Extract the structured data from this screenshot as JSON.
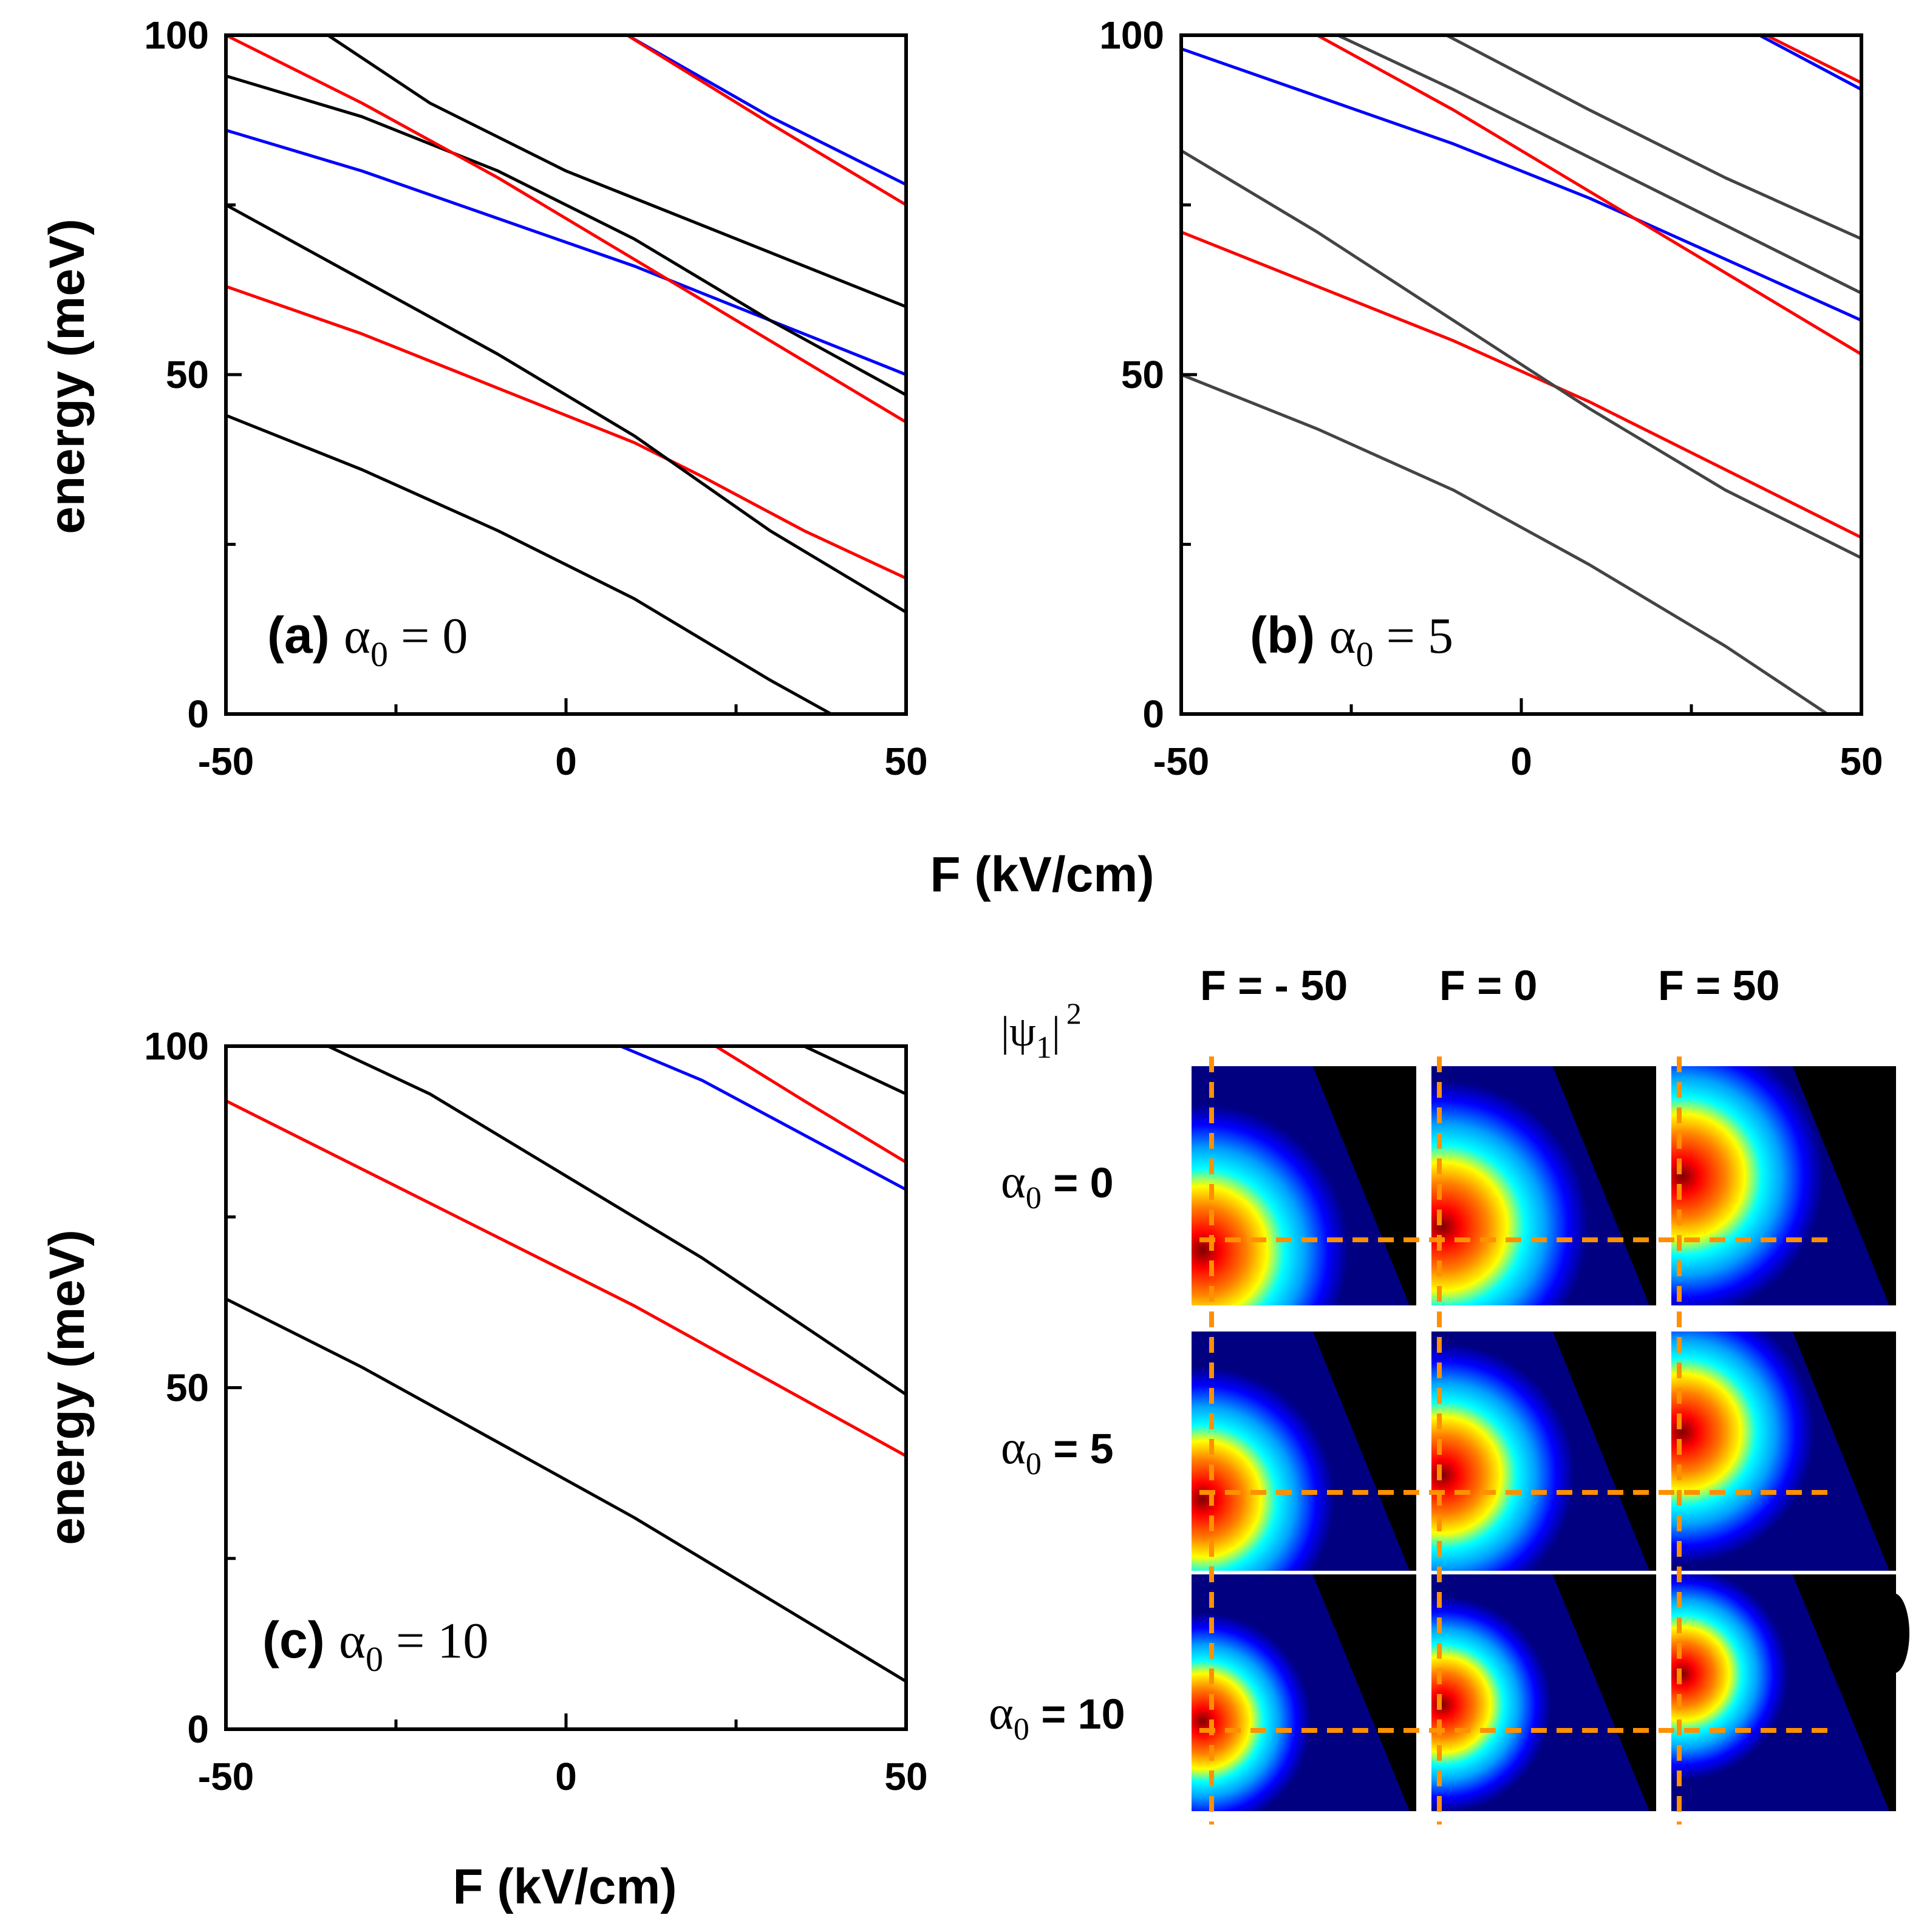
{
  "chart_data": [
    {
      "type": "line",
      "panel": "a",
      "label": "(a)",
      "param_symbol": "α",
      "param_sub": "0",
      "param_eq": " = ",
      "param_value": "0",
      "xlabel": "F (kV/cm)",
      "ylabel": "energy (meV)",
      "xlim": [
        -50,
        50
      ],
      "ylim": [
        0,
        100
      ],
      "xticks": [
        "-50",
        "0",
        "50"
      ],
      "yticks": [
        "0",
        "50",
        "100"
      ],
      "colors": {
        "black": "#000000",
        "red": "#ff0000",
        "blue": "#0000ff"
      },
      "series": [
        {
          "name": "black-1",
          "color": "black",
          "x": [
            -50,
            -30,
            -10,
            10,
            20,
            30,
            39
          ],
          "y": [
            44,
            36,
            27,
            17,
            11,
            5,
            0
          ]
        },
        {
          "name": "red-1",
          "color": "red",
          "x": [
            -50,
            -30,
            -10,
            10,
            20,
            35,
            50
          ],
          "y": [
            63,
            56,
            48,
            40,
            35,
            27,
            20
          ]
        },
        {
          "name": "black-2",
          "color": "black",
          "x": [
            -50,
            -30,
            -10,
            10,
            30,
            50
          ],
          "y": [
            75,
            64,
            53,
            41,
            27,
            15
          ]
        },
        {
          "name": "blue-1",
          "color": "blue",
          "x": [
            -50,
            -30,
            -10,
            10,
            30,
            50
          ],
          "y": [
            86,
            80,
            73,
            66,
            58,
            50
          ]
        },
        {
          "name": "black-3",
          "color": "black",
          "x": [
            -50,
            -30,
            -10,
            10,
            30,
            50
          ],
          "y": [
            94,
            88,
            80,
            70,
            58,
            47
          ]
        },
        {
          "name": "red-2",
          "color": "red",
          "x": [
            -50,
            -30,
            -10,
            10,
            30,
            50
          ],
          "y": [
            100,
            90,
            79,
            67,
            55,
            43
          ]
        },
        {
          "name": "black-4",
          "color": "black",
          "x": [
            -35,
            -20,
            -10,
            0,
            20,
            50
          ],
          "y": [
            100,
            90,
            85,
            80,
            72,
            60
          ]
        },
        {
          "name": "blue-2",
          "color": "blue",
          "x": [
            9,
            30,
            50
          ],
          "y": [
            100,
            88,
            78
          ]
        },
        {
          "name": "red-3",
          "color": "red",
          "x": [
            9,
            30,
            50
          ],
          "y": [
            100,
            87,
            75
          ]
        }
      ]
    },
    {
      "type": "line",
      "panel": "b",
      "label": "(b)",
      "param_symbol": "α",
      "param_sub": "0",
      "param_eq": " = ",
      "param_value": "5",
      "xlabel": "F (kV/cm)",
      "ylabel": "",
      "xlim": [
        -50,
        50
      ],
      "ylim": [
        0,
        100
      ],
      "xticks": [
        "-50",
        "0",
        "50"
      ],
      "yticks": [
        "0",
        "50",
        "100"
      ],
      "colors": {
        "gray": "#444444",
        "red": "#ff0000",
        "blue": "#0000ff"
      },
      "series": [
        {
          "name": "gray-1",
          "color": "gray",
          "x": [
            -50,
            -30,
            -10,
            10,
            30,
            45
          ],
          "y": [
            50,
            42,
            33,
            22,
            10,
            0
          ]
        },
        {
          "name": "red-1",
          "color": "red",
          "x": [
            -50,
            -30,
            -10,
            10,
            30,
            50
          ],
          "y": [
            71,
            63,
            55,
            46,
            36,
            26
          ]
        },
        {
          "name": "gray-2",
          "color": "gray",
          "x": [
            -50,
            -30,
            -10,
            10,
            30,
            50
          ],
          "y": [
            83,
            71,
            58,
            45,
            33,
            23
          ]
        },
        {
          "name": "blue-1",
          "color": "blue",
          "x": [
            -50,
            -30,
            -10,
            10,
            30,
            50
          ],
          "y": [
            98,
            91,
            84,
            76,
            67,
            58
          ]
        },
        {
          "name": "red-2",
          "color": "red",
          "x": [
            -30,
            -10,
            10,
            30,
            50
          ],
          "y": [
            100,
            89,
            77,
            65,
            53
          ]
        },
        {
          "name": "gray-3",
          "color": "gray",
          "x": [
            -27,
            -10,
            10,
            30,
            50
          ],
          "y": [
            100,
            92,
            82,
            72,
            62
          ]
        },
        {
          "name": "gray-4",
          "color": "gray",
          "x": [
            -11,
            10,
            30,
            50
          ],
          "y": [
            100,
            89,
            79,
            70
          ]
        },
        {
          "name": "blue-2",
          "color": "blue",
          "x": [
            35,
            50
          ],
          "y": [
            100,
            92
          ]
        },
        {
          "name": "red-3",
          "color": "red",
          "x": [
            36,
            50
          ],
          "y": [
            100,
            93
          ]
        }
      ]
    },
    {
      "type": "line",
      "panel": "c",
      "label": "(c)",
      "param_symbol": "α",
      "param_sub": "0",
      "param_eq": " = ",
      "param_value": "10",
      "xlabel": "F (kV/cm)",
      "ylabel": "energy (meV)",
      "xlim": [
        -50,
        50
      ],
      "ylim": [
        0,
        100
      ],
      "xticks": [
        "-50",
        "0",
        "50"
      ],
      "yticks": [
        "0",
        "50",
        "100"
      ],
      "colors": {
        "black": "#000000",
        "red": "#ff0000",
        "blue": "#0000ff"
      },
      "series": [
        {
          "name": "black-1",
          "color": "black",
          "x": [
            -50,
            -30,
            -10,
            10,
            30,
            50
          ],
          "y": [
            63,
            53,
            42,
            31,
            19,
            7
          ]
        },
        {
          "name": "red-1",
          "color": "red",
          "x": [
            -50,
            -30,
            -10,
            10,
            30,
            50
          ],
          "y": [
            92,
            82,
            72,
            62,
            51,
            40
          ]
        },
        {
          "name": "black-2",
          "color": "black",
          "x": [
            -35,
            -20,
            0,
            20,
            35,
            50
          ],
          "y": [
            100,
            93,
            81,
            69,
            59,
            49
          ]
        },
        {
          "name": "blue-1",
          "color": "blue",
          "x": [
            8,
            20,
            35,
            50
          ],
          "y": [
            100,
            95,
            87,
            79
          ]
        },
        {
          "name": "red-2",
          "color": "red",
          "x": [
            22,
            35,
            50
          ],
          "y": [
            100,
            92,
            83
          ]
        },
        {
          "name": "black-3",
          "color": "black",
          "x": [
            35,
            50
          ],
          "y": [
            100,
            93
          ]
        }
      ]
    }
  ],
  "grid": {
    "title_psi": "|ψ",
    "title_sub": "1",
    "title_bar": "|",
    "title_sup": "2",
    "columns": [
      "F = - 50",
      "F = 0",
      "F = 50"
    ],
    "rows": [
      {
        "symbol": "α",
        "sub": "0",
        "text": " = 0"
      },
      {
        "symbol": "α",
        "sub": "0",
        "text": " = 5"
      },
      {
        "symbol": "α",
        "sub": "0",
        "text": " = 10"
      }
    ],
    "colormap": [
      "#000080",
      "#0000ff",
      "#00a0ff",
      "#00ffff",
      "#ffff00",
      "#ff8000",
      "#ff0000",
      "#800000"
    ],
    "background": "#000000",
    "guide_color": "#ff9000"
  }
}
